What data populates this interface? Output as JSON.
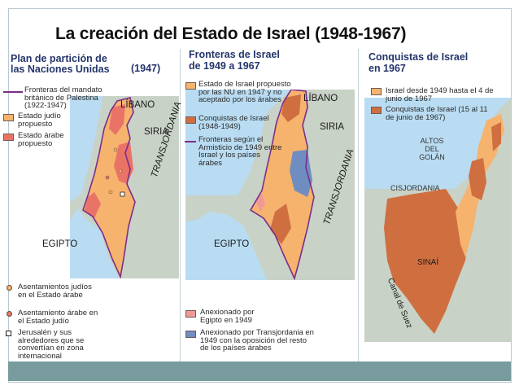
{
  "title": "La creación del Estado de Israel  (1948-1967)",
  "colors": {
    "sea": "#b9dcf2",
    "land_gray": "#c9d2c7",
    "jewish_state": "#f5b36e",
    "arab_state": "#ea7368",
    "conquest": "#cf6f3f",
    "egypt_annex": "#f09a98",
    "jordan_annex": "#6f8dc0",
    "mandate_border": "#7c2d8a",
    "bottom_bar": "#789b9d"
  },
  "panel1": {
    "title_line1": "Plan de partición de",
    "title_line2": "las Naciones Unidas",
    "title_year": "(1947)",
    "legend_top": [
      {
        "icon": "purple-line",
        "text": "Fronteras del mandato británico de Palestina (1922-1947)"
      },
      {
        "icon": "swatch-orange",
        "text": "Estado judío propuesto"
      },
      {
        "icon": "swatch-red",
        "text": "Estado árabe propuesto"
      }
    ],
    "legend_bottom": [
      {
        "icon": "orange-dot",
        "text": "Asentamientos judíos en el Estado árabe"
      },
      {
        "icon": "red-dot",
        "text": "Asentamiento árabe en el Estado judío"
      },
      {
        "icon": "white-square",
        "text": "Jerusalén y sus alrededores que se convertían en zona internacional"
      }
    ],
    "labels": {
      "libano": "LÍBANO",
      "siria": "SIRIA",
      "transjordania": "TRANSJORDANIA",
      "egipto": "EGIPTO"
    }
  },
  "panel2": {
    "title_line1": "Fronteras de Israel",
    "title_line2": "de 1949 a 1967",
    "legend_top": [
      {
        "icon": "swatch-orange",
        "text": "Estado de Israel propuesto por las NU en 1947 y no aceptado por los árabes"
      },
      {
        "icon": "swatch-conquest",
        "text": "Conquistas de Israel (1948-1949)"
      },
      {
        "icon": "purple-line",
        "text": "Fronteras según el Armisticio de 1949 entre Israel y los países árabes"
      }
    ],
    "legend_bottom": [
      {
        "icon": "swatch-pink",
        "text": "Anexionado por Egipto en 1949"
      },
      {
        "icon": "swatch-blue",
        "text": "Anexionado por Transjordania en 1949 con la oposición del resto de los países árabes"
      }
    ],
    "labels": {
      "libano": "LÍBANO",
      "siria": "SIRIA",
      "transjordania": "TRANSJORDANIA",
      "egipto": "EGIPTO"
    }
  },
  "panel3": {
    "title_line1": "Conquistas de Israel",
    "title_line2": "en 1967",
    "legend_top": [
      {
        "icon": "swatch-orange",
        "text": "Israel desde 1949 hasta el 4 de junio de 1967"
      },
      {
        "icon": "swatch-conquest",
        "text": "Conquistas de Israel (15 al 11 de junio de 1967)"
      }
    ],
    "labels": {
      "altos_line1": "ALTOS",
      "altos_line2": "DEL",
      "altos_line3": "GOLÁN",
      "cisjordania": "CISJORDANIA",
      "canal": "Canal de Suez",
      "sinai": "SINAÍ"
    }
  }
}
